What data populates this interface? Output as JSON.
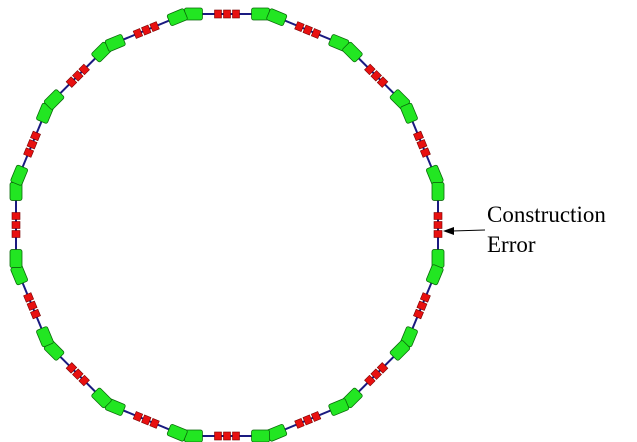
{
  "annotation": {
    "lines": [
      "Construction",
      "Error"
    ]
  }
}
